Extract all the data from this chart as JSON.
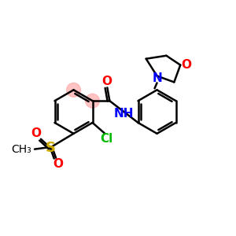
{
  "background_color": "#ffffff",
  "bond_color": "#000000",
  "bond_width": 1.8,
  "atom_colors": {
    "O": "#ff0000",
    "N": "#0000ff",
    "Cl": "#00bb00",
    "S": "#ccaa00",
    "C": "#000000"
  },
  "font_size": 11,
  "highlight_color": "#ff9999",
  "figsize": [
    3.0,
    3.0
  ],
  "dpi": 100
}
